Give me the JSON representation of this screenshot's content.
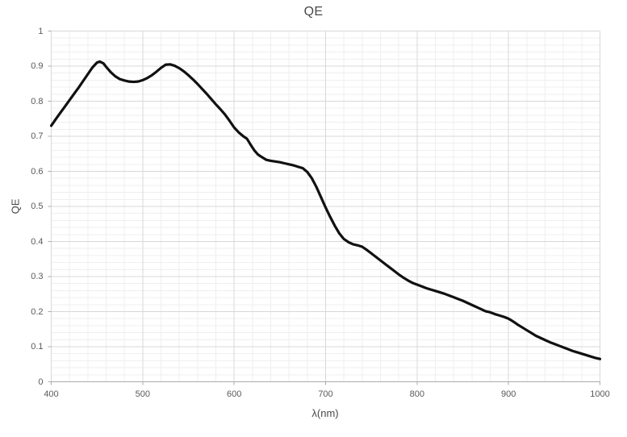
{
  "chart_data": {
    "type": "line",
    "title": "QE",
    "xlabel": "λ(nm)",
    "ylabel": "QE",
    "xlim": [
      400,
      1000
    ],
    "ylim": [
      0,
      1
    ],
    "x_major_step": 100,
    "x_minor_step": 20,
    "y_major_step": 0.1,
    "y_minor_step": 0.02,
    "grid": "major and minor, both axes",
    "legend": false,
    "x_tick_values": [
      400,
      500,
      600,
      700,
      800,
      900,
      1000
    ],
    "x_tick_labels": [
      "400",
      "500",
      "600",
      "700",
      "800",
      "900",
      "1000"
    ],
    "y_tick_values": [
      0,
      0.1,
      0.2,
      0.3,
      0.4,
      0.5,
      0.6,
      0.7,
      0.8,
      0.9,
      1
    ],
    "y_tick_labels": [
      "0",
      "0.1",
      "0.2",
      "0.3",
      "0.4",
      "0.5",
      "0.6",
      "0.7",
      "0.8",
      "0.9",
      "1"
    ],
    "colors": {
      "curve": "#111111",
      "major_grid": "#d8d8d8",
      "minor_grid": "#efefef",
      "axis_line": "#ababab",
      "tick_mark": "#ababab",
      "title_text": "#474747",
      "tick_text": "#595959"
    },
    "series": [
      {
        "name": "QE",
        "points": [
          [
            400,
            0.73
          ],
          [
            405,
            0.749
          ],
          [
            410,
            0.767
          ],
          [
            415,
            0.785
          ],
          [
            420,
            0.803
          ],
          [
            425,
            0.821
          ],
          [
            430,
            0.839
          ],
          [
            435,
            0.858
          ],
          [
            440,
            0.877
          ],
          [
            445,
            0.896
          ],
          [
            450,
            0.91
          ],
          [
            453,
            0.913
          ],
          [
            457,
            0.908
          ],
          [
            460,
            0.898
          ],
          [
            465,
            0.883
          ],
          [
            470,
            0.871
          ],
          [
            475,
            0.863
          ],
          [
            480,
            0.859
          ],
          [
            485,
            0.856
          ],
          [
            490,
            0.855
          ],
          [
            495,
            0.856
          ],
          [
            500,
            0.86
          ],
          [
            505,
            0.866
          ],
          [
            510,
            0.874
          ],
          [
            515,
            0.884
          ],
          [
            520,
            0.895
          ],
          [
            525,
            0.904
          ],
          [
            530,
            0.905
          ],
          [
            535,
            0.901
          ],
          [
            540,
            0.894
          ],
          [
            545,
            0.885
          ],
          [
            550,
            0.874
          ],
          [
            555,
            0.862
          ],
          [
            560,
            0.849
          ],
          [
            565,
            0.835
          ],
          [
            570,
            0.821
          ],
          [
            575,
            0.806
          ],
          [
            580,
            0.791
          ],
          [
            585,
            0.777
          ],
          [
            590,
            0.762
          ],
          [
            595,
            0.744
          ],
          [
            600,
            0.725
          ],
          [
            605,
            0.711
          ],
          [
            610,
            0.7
          ],
          [
            614,
            0.693
          ],
          [
            618,
            0.676
          ],
          [
            622,
            0.66
          ],
          [
            626,
            0.648
          ],
          [
            630,
            0.641
          ],
          [
            635,
            0.633
          ],
          [
            640,
            0.63
          ],
          [
            645,
            0.628
          ],
          [
            650,
            0.626
          ],
          [
            655,
            0.623
          ],
          [
            660,
            0.62
          ],
          [
            665,
            0.617
          ],
          [
            670,
            0.613
          ],
          [
            675,
            0.609
          ],
          [
            680,
            0.598
          ],
          [
            685,
            0.58
          ],
          [
            690,
            0.555
          ],
          [
            695,
            0.526
          ],
          [
            700,
            0.497
          ],
          [
            705,
            0.47
          ],
          [
            710,
            0.445
          ],
          [
            715,
            0.423
          ],
          [
            720,
            0.407
          ],
          [
            725,
            0.398
          ],
          [
            730,
            0.392
          ],
          [
            735,
            0.389
          ],
          [
            740,
            0.385
          ],
          [
            745,
            0.376
          ],
          [
            750,
            0.366
          ],
          [
            755,
            0.356
          ],
          [
            760,
            0.346
          ],
          [
            765,
            0.336
          ],
          [
            770,
            0.326
          ],
          [
            775,
            0.316
          ],
          [
            780,
            0.306
          ],
          [
            785,
            0.297
          ],
          [
            790,
            0.289
          ],
          [
            795,
            0.282
          ],
          [
            800,
            0.277
          ],
          [
            805,
            0.272
          ],
          [
            810,
            0.267
          ],
          [
            815,
            0.263
          ],
          [
            820,
            0.259
          ],
          [
            825,
            0.255
          ],
          [
            830,
            0.251
          ],
          [
            835,
            0.246
          ],
          [
            840,
            0.241
          ],
          [
            845,
            0.236
          ],
          [
            850,
            0.231
          ],
          [
            855,
            0.225
          ],
          [
            860,
            0.219
          ],
          [
            865,
            0.213
          ],
          [
            870,
            0.207
          ],
          [
            875,
            0.201
          ],
          [
            880,
            0.198
          ],
          [
            885,
            0.193
          ],
          [
            890,
            0.189
          ],
          [
            895,
            0.185
          ],
          [
            900,
            0.18
          ],
          [
            905,
            0.172
          ],
          [
            910,
            0.163
          ],
          [
            915,
            0.155
          ],
          [
            920,
            0.147
          ],
          [
            925,
            0.139
          ],
          [
            930,
            0.131
          ],
          [
            935,
            0.125
          ],
          [
            940,
            0.119
          ],
          [
            945,
            0.113
          ],
          [
            950,
            0.108
          ],
          [
            955,
            0.103
          ],
          [
            960,
            0.098
          ],
          [
            965,
            0.093
          ],
          [
            970,
            0.088
          ],
          [
            975,
            0.084
          ],
          [
            980,
            0.08
          ],
          [
            985,
            0.076
          ],
          [
            990,
            0.072
          ],
          [
            995,
            0.068
          ],
          [
            1000,
            0.065
          ]
        ]
      }
    ]
  }
}
